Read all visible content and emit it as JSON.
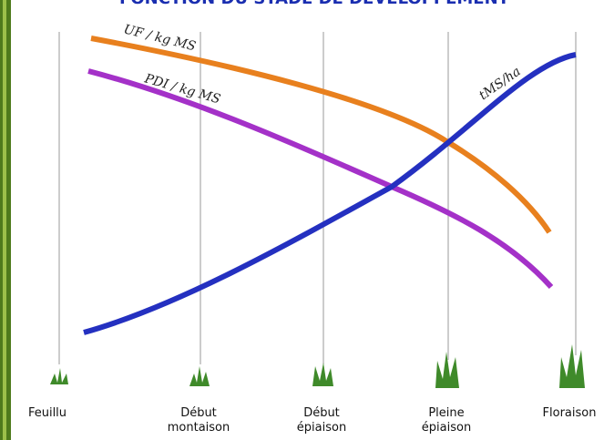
{
  "header": {
    "title": "FONCTION DU STADE DE DEVELOPPEMENT"
  },
  "curves": [
    {
      "label": "UF / kg MS"
    },
    {
      "label": "PDI / kg MS"
    },
    {
      "label": "tMS/ha"
    }
  ],
  "stages": [
    {
      "lines": [
        "Feuillu"
      ]
    },
    {
      "lines": [
        "Début",
        "montaison"
      ]
    },
    {
      "lines": [
        "Début",
        "épiaison"
      ]
    },
    {
      "lines": [
        "Pleine",
        "épiaison"
      ]
    },
    {
      "lines": [
        "Floraison"
      ]
    }
  ]
}
